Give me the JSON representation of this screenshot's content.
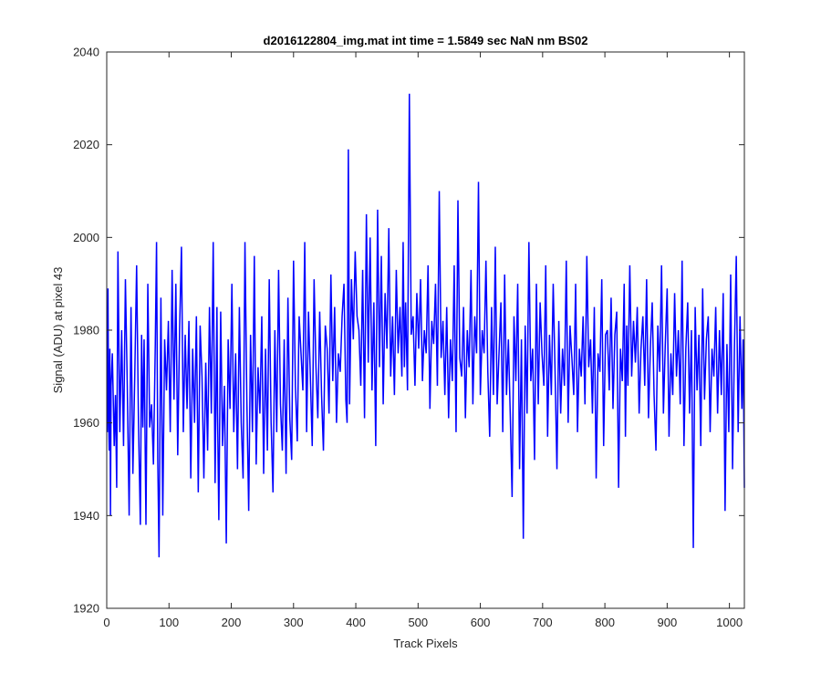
{
  "chart_data": {
    "type": "line",
    "title": "d2016122804_img.mat int time = 1.5849 sec  NaN nm BS02",
    "xlabel": "Track Pixels",
    "ylabel": "Signal (ADU) at pixel 43",
    "xlim": [
      0,
      1024
    ],
    "ylim": [
      1920,
      2040
    ],
    "xticks": [
      "0",
      "100",
      "200",
      "300",
      "400",
      "500",
      "600",
      "700",
      "800",
      "900",
      "1000"
    ],
    "yticks": [
      "1920",
      "1940",
      "1960",
      "1980",
      "2000",
      "2020",
      "2040"
    ],
    "grid": false,
    "series": [
      {
        "color": "#0000ff",
        "x": [
          1,
          2,
          3,
          4,
          5,
          6,
          7,
          9,
          12,
          14,
          16,
          18,
          21,
          24,
          27,
          30,
          33,
          36,
          39,
          42,
          45,
          48,
          51,
          54,
          56,
          58,
          60,
          63,
          66,
          69,
          72,
          75,
          78,
          80,
          82,
          84,
          87,
          90,
          93,
          96,
          99,
          102,
          105,
          108,
          111,
          114,
          117,
          120,
          123,
          126,
          129,
          132,
          135,
          138,
          141,
          144,
          147,
          150,
          153,
          156,
          159,
          162,
          165,
          168,
          171,
          174,
          177,
          178,
          180,
          183,
          186,
          189,
          192,
          195,
          198,
          201,
          204,
          207,
          210,
          213,
          216,
          219,
          222,
          225,
          228,
          231,
          234,
          237,
          240,
          243,
          246,
          249,
          252,
          255,
          258,
          261,
          264,
          267,
          270,
          273,
          276,
          279,
          282,
          285,
          288,
          291,
          294,
          297,
          300,
          303,
          306,
          309,
          312,
          315,
          318,
          321,
          324,
          327,
          330,
          333,
          336,
          339,
          342,
          345,
          348,
          351,
          354,
          357,
          360,
          363,
          366,
          369,
          372,
          375,
          378,
          381,
          384,
          386,
          388,
          390,
          393,
          396,
          399,
          402,
          405,
          408,
          411,
          414,
          417,
          420,
          423,
          426,
          429,
          432,
          435,
          438,
          441,
          444,
          447,
          450,
          453,
          456,
          459,
          462,
          465,
          468,
          471,
          474,
          476,
          478,
          480,
          483,
          486,
          489,
          492,
          495,
          498,
          501,
          504,
          507,
          510,
          513,
          516,
          519,
          522,
          525,
          528,
          531,
          534,
          537,
          540,
          543,
          546,
          549,
          552,
          555,
          558,
          561,
          564,
          567,
          570,
          573,
          576,
          579,
          582,
          585,
          588,
          591,
          594,
          597,
          600,
          603,
          606,
          609,
          612,
          615,
          618,
          621,
          624,
          627,
          630,
          633,
          636,
          639,
          642,
          645,
          648,
          651,
          654,
          657,
          660,
          663,
          666,
          669,
          672,
          675,
          678,
          681,
          684,
          687,
          690,
          693,
          696,
          699,
          702,
          705,
          708,
          711,
          714,
          717,
          720,
          723,
          726,
          729,
          732,
          735,
          738,
          741,
          744,
          747,
          750,
          753,
          756,
          759,
          762,
          765,
          768,
          771,
          774,
          777,
          780,
          783,
          786,
          789,
          792,
          795,
          798,
          801,
          804,
          807,
          810,
          813,
          816,
          819,
          822,
          825,
          828,
          831,
          833,
          835,
          837,
          840,
          843,
          846,
          849,
          852,
          855,
          858,
          861,
          864,
          867,
          870,
          873,
          876,
          879,
          882,
          885,
          888,
          891,
          894,
          897,
          900,
          903,
          906,
          909,
          912,
          915,
          918,
          921,
          924,
          927,
          930,
          933,
          936,
          939,
          942,
          945,
          948,
          951,
          954,
          957,
          960,
          963,
          966,
          969,
          972,
          975,
          978,
          981,
          984,
          987,
          990,
          993,
          996,
          999,
          1002,
          1005,
          1008,
          1011,
          1014,
          1017,
          1020,
          1022,
          1024
        ],
        "y": [
          1958,
          1989,
          1962,
          1954,
          1976,
          1940,
          1968,
          1975,
          1955,
          1966,
          1946,
          1997,
          1958,
          1980,
          1955,
          1991,
          1968,
          1940,
          1985,
          1949,
          1970,
          1994,
          1960,
          1938,
          1979,
          1959,
          1978,
          1938,
          1990,
          1959,
          1964,
          1951,
          1977,
          1999,
          1952,
          1931,
          1987,
          1940,
          1978,
          1967,
          1982,
          1958,
          1993,
          1965,
          1990,
          1953,
          1980,
          1998,
          1958,
          1979,
          1963,
          1982,
          1948,
          1976,
          1960,
          1983,
          1945,
          1981,
          1970,
          1948,
          1973,
          1954,
          1985,
          1962,
          1999,
          1947,
          1985,
          1962,
          1939,
          1984,
          1955,
          1968,
          1934,
          1978,
          1963,
          1990,
          1958,
          1975,
          1950,
          1985,
          1960,
          1948,
          1999,
          1965,
          1941,
          1979,
          1958,
          1996,
          1951,
          1972,
          1962,
          1983,
          1949,
          1976,
          1954,
          1991,
          1960,
          1945,
          1980,
          1958,
          1993,
          1964,
          1954,
          1978,
          1949,
          1987,
          1961,
          1952,
          1995,
          1968,
          1956,
          1983,
          1975,
          1967,
          1999,
          1958,
          1984,
          1970,
          1955,
          1991,
          1972,
          1961,
          1984,
          1966,
          1954,
          1981,
          1976,
          1962,
          1992,
          1969,
          1985,
          1960,
          1975,
          1971,
          1983,
          1990,
          1965,
          1960,
          2019,
          1964,
          1991,
          1978,
          1997,
          1983,
          1980,
          1968,
          1993,
          1961,
          2005,
          1973,
          2000,
          1967,
          1986,
          1955,
          2006,
          1972,
          1996,
          1964,
          1988,
          1976,
          2002,
          1970,
          1983,
          1966,
          1993,
          1975,
          1985,
          1970,
          1999,
          1972,
          1986,
          1967,
          2031,
          1979,
          1983,
          1968,
          1988,
          1976,
          1991,
          1969,
          1980,
          1975,
          1994,
          1963,
          1982,
          1977,
          1990,
          1968,
          2010,
          1974,
          1982,
          1966,
          1985,
          1961,
          1978,
          1969,
          1994,
          1958,
          2008,
          1974,
          1970,
          1985,
          1961,
          1980,
          1972,
          1993,
          1964,
          1983,
          1975,
          2012,
          1966,
          1980,
          1975,
          1995,
          1971,
          1957,
          1985,
          1966,
          1998,
          1964,
          1975,
          1986,
          1958,
          1992,
          1966,
          1978,
          1962,
          1944,
          1983,
          1969,
          1990,
          1950,
          1978,
          1935,
          1981,
          1962,
          1999,
          1969,
          1976,
          1952,
          1990,
          1964,
          1986,
          1975,
          1968,
          1994,
          1957,
          1979,
          1966,
          1990,
          1971,
          1950,
          1982,
          1962,
          1976,
          1968,
          1995,
          1960,
          1981,
          1974,
          1966,
          1990,
          1958,
          1976,
          1970,
          1983,
          1964,
          1996,
          1972,
          1978,
          1962,
          1985,
          1948,
          1975,
          1971,
          1991,
          1955,
          1979,
          1980,
          1967,
          1987,
          1963,
          1979,
          1984,
          1946,
          1976,
          1969,
          1990,
          1957,
          1981,
          1968,
          1994,
          1970,
          1982,
          1973,
          1985,
          1962,
          1976,
          1983,
          1968,
          1991,
          1961,
          1976,
          1986,
          1966,
          1954,
          1981,
          1971,
          1994,
          1962,
          1977,
          1989,
          1957,
          1975,
          1966,
          1988,
          1970,
          1980,
          1964,
          1995,
          1955,
          1976,
          1986,
          1962,
          1980,
          1933,
          1985,
          1967,
          1979,
          1955,
          1989,
          1965,
          1978,
          1983,
          1958,
          1976,
          1970,
          1985,
          1962,
          1980,
          1966,
          1988,
          1941,
          1977,
          1958,
          1992,
          1950,
          1976,
          1996,
          1958,
          1983,
          1963,
          1978,
          1946
        ]
      }
    ]
  }
}
